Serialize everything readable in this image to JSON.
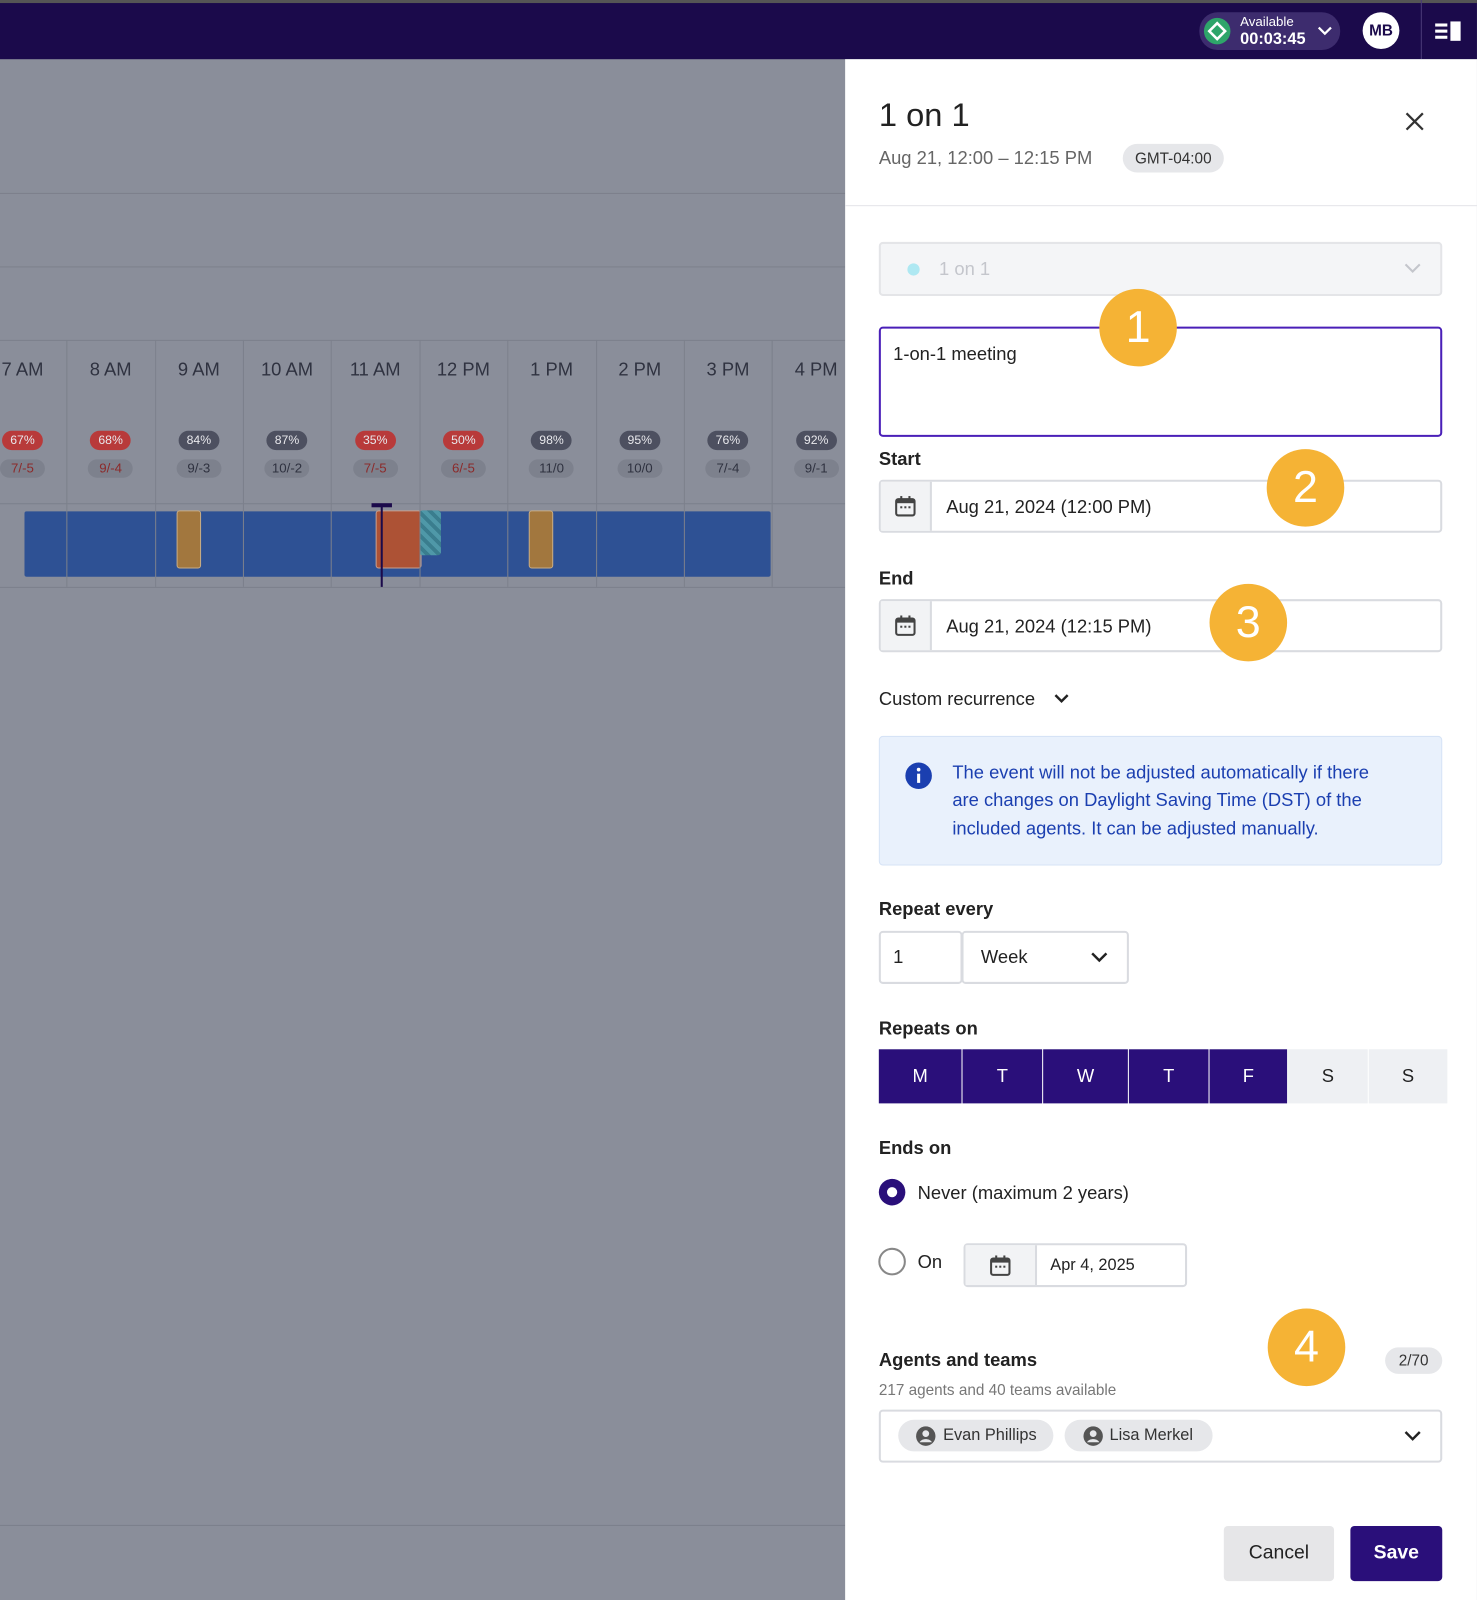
{
  "topbar": {
    "status": "Available",
    "timer": "00:03:45",
    "avatar": "MB"
  },
  "timeline": {
    "hours": [
      "7 AM",
      "8 AM",
      "9 AM",
      "10 AM",
      "11 AM",
      "12 PM",
      "1 PM",
      "2 PM",
      "3 PM",
      "4 PM"
    ],
    "occupancy": [
      "67%",
      "68%",
      "84%",
      "87%",
      "35%",
      "50%",
      "98%",
      "95%",
      "76%",
      "92%"
    ],
    "ratios": [
      "7/-5",
      "9/-4",
      "9/-3",
      "10/-2",
      "7/-5",
      "6/-5",
      "11/0",
      "10/0",
      "7/-4",
      "9/-1"
    ],
    "badge_colors": [
      "#b83a3a",
      "#b83a3a",
      "#4d5060",
      "#4d5060",
      "#b83a3a",
      "#b83a3a",
      "#4d5060",
      "#4d5060",
      "#4d5060",
      "#4d5060"
    ]
  },
  "panel": {
    "title": "1 on 1",
    "subtitle": "Aug 21, 12:00 – 12:15 PM",
    "timezone": "GMT-04:00",
    "event_type": "1 on 1",
    "description": "1-on-1 meeting",
    "start_label": "Start",
    "start_value": "Aug 21, 2024 (12:00 PM)",
    "end_label": "End",
    "end_value": "Aug 21, 2024 (12:15 PM)",
    "recurrence": "Custom recurrence",
    "info": [
      "The event will not be adjusted automatically if there",
      "are changes on Daylight Saving Time (DST) of the",
      "included agents. It can be adjusted manually."
    ],
    "repeat_label": "Repeat every",
    "repeat_number": "1",
    "repeat_unit": "Week",
    "repeats_on_label": "Repeats on",
    "days": [
      "M",
      "T",
      "W",
      "T",
      "F",
      "S",
      "S"
    ],
    "days_selected": [
      true,
      true,
      true,
      true,
      true,
      false,
      false
    ],
    "ends_on_label": "Ends on",
    "never_label": "Never (maximum 2 years)",
    "on_label": "On",
    "on_date": "Apr 4, 2025",
    "agents_label": "Agents and teams",
    "agents_count": "2/70",
    "agents_available": "217 agents and 40 teams available",
    "chips": [
      "Evan Phillips",
      "Lisa Merkel"
    ],
    "cancel": "Cancel",
    "save": "Save"
  },
  "callouts": [
    "1",
    "2",
    "3",
    "4"
  ]
}
